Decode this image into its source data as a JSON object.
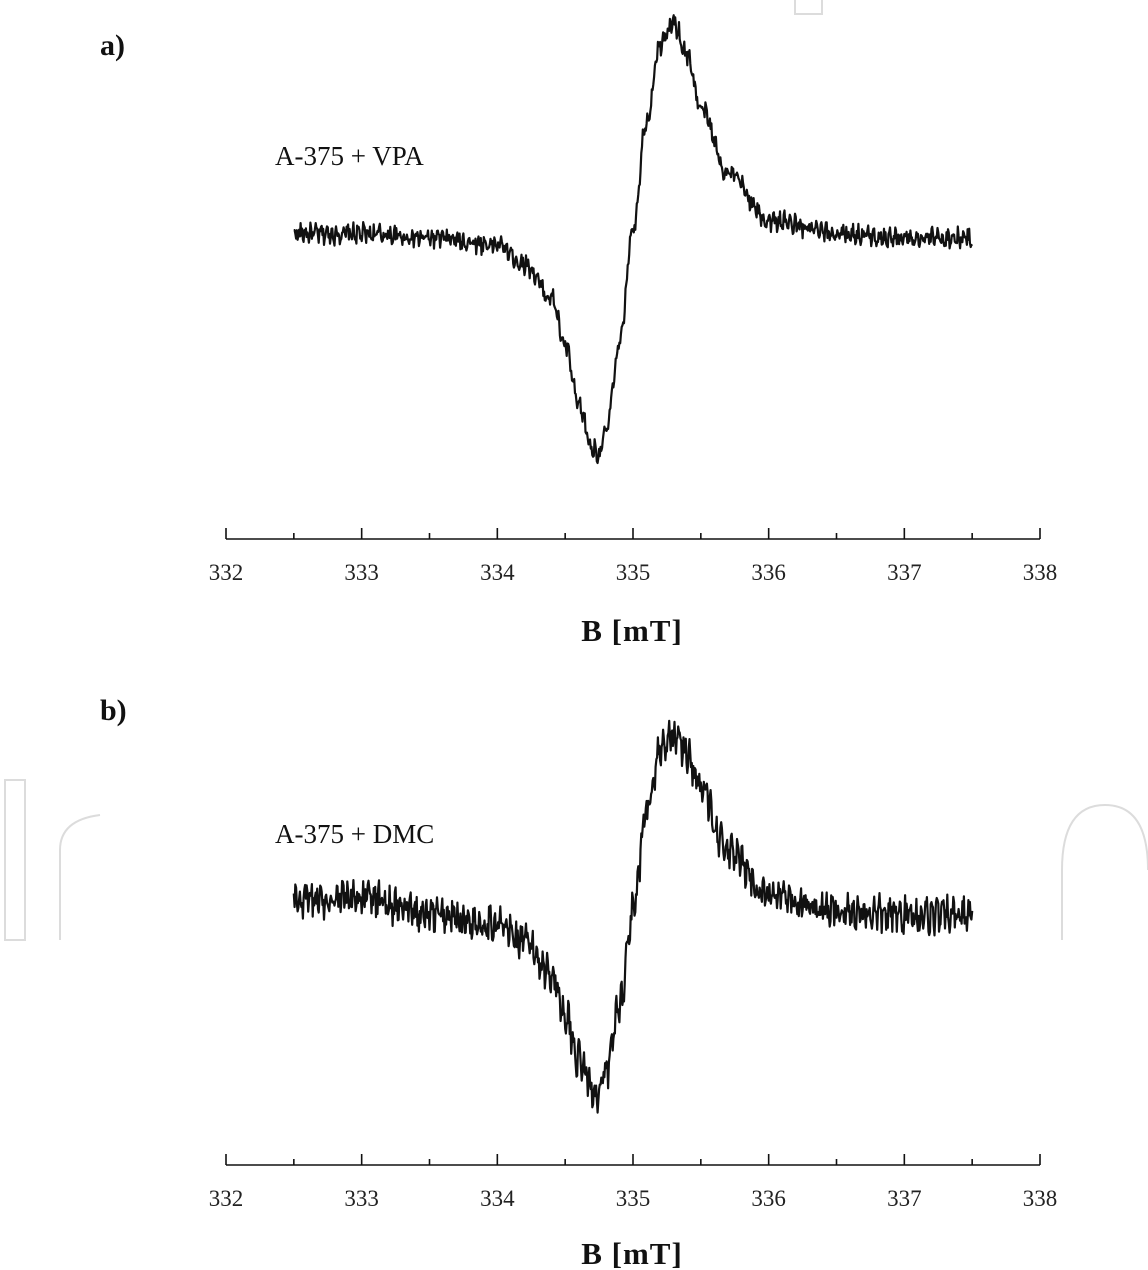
{
  "chart_data": [
    {
      "type": "line",
      "panel_label": "a)",
      "series": [
        {
          "name": "A-375 + VPA",
          "center": 335.0,
          "baseline": 0,
          "amplitude": 1.0,
          "noise_level": "low",
          "x": [
            332.5,
            333.0,
            333.5,
            334.0,
            334.2,
            334.4,
            334.5,
            334.6,
            334.7,
            334.75,
            334.8,
            334.9,
            335.0,
            335.1,
            335.2,
            335.3,
            335.4,
            335.5,
            335.7,
            336.0,
            336.5,
            337.0,
            337.5
          ],
          "y": [
            0.02,
            0.02,
            0.0,
            -0.03,
            -0.12,
            -0.28,
            -0.5,
            -0.78,
            -0.98,
            -1.0,
            -0.9,
            -0.5,
            0.05,
            0.55,
            0.9,
            1.0,
            0.85,
            0.6,
            0.3,
            0.08,
            0.02,
            0.0,
            0.0
          ]
        }
      ],
      "xlim": [
        332,
        338
      ],
      "ticks": [
        332,
        333,
        334,
        335,
        336,
        337,
        338
      ],
      "xlabel": "B [mT]",
      "ylabel": ""
    },
    {
      "type": "line",
      "panel_label": "b)",
      "series": [
        {
          "name": "A-375 + DMC",
          "center": 335.0,
          "baseline": 0,
          "amplitude": 1.0,
          "noise_level": "high",
          "x": [
            332.5,
            333.0,
            333.5,
            334.0,
            334.2,
            334.4,
            334.5,
            334.6,
            334.7,
            334.75,
            334.8,
            334.9,
            335.0,
            335.1,
            335.2,
            335.3,
            335.4,
            335.5,
            335.7,
            336.0,
            336.5,
            337.0,
            337.5
          ],
          "y": [
            0.08,
            0.1,
            0.0,
            -0.05,
            -0.15,
            -0.32,
            -0.55,
            -0.8,
            -0.96,
            -1.0,
            -0.88,
            -0.5,
            0.02,
            0.55,
            0.92,
            1.0,
            0.9,
            0.7,
            0.35,
            0.1,
            0.02,
            0.0,
            0.0
          ]
        }
      ],
      "xlim": [
        332,
        338
      ],
      "ticks": [
        332,
        333,
        334,
        335,
        336,
        337,
        338
      ],
      "xlabel": "B [mT]",
      "ylabel": ""
    }
  ]
}
